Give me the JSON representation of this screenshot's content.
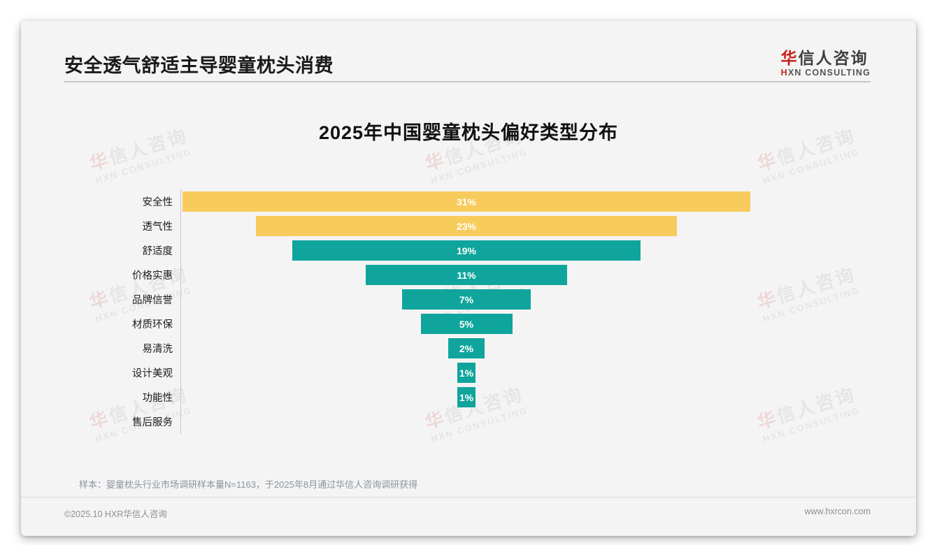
{
  "header": {
    "title": "安全透气舒适主导婴童枕头消费",
    "logo": {
      "zh_accent": "华",
      "zh_rest": "信人咨询",
      "en_accent": "H",
      "en_rest": "XN CONSULTING"
    }
  },
  "chart_data": {
    "type": "bar",
    "subtype": "horizontal-centered-funnel",
    "title": "2025年中国婴童枕头偏好类型分布",
    "categories": [
      "安全性",
      "透气性",
      "舒适度",
      "价格实惠",
      "品牌信誉",
      "材质环保",
      "易清洗",
      "设计美观",
      "功能性",
      "售后服务"
    ],
    "values": [
      31,
      23,
      19,
      11,
      7,
      5,
      2,
      1,
      1,
      0
    ],
    "value_labels": [
      "31%",
      "23%",
      "19%",
      "11%",
      "7%",
      "5%",
      "2%",
      "1%",
      "1%",
      ""
    ],
    "unit": "%",
    "xlim": [
      0,
      31
    ],
    "bar_colors": [
      "#F8CB5D",
      "#F8CB5D",
      "#0FA59C",
      "#0FA59C",
      "#0FA59C",
      "#0FA59C",
      "#0FA59C",
      "#0FA59C",
      "#0FA59C",
      "#0FA59C"
    ],
    "value_label_color": "#ffffff",
    "axis_line": true,
    "grid": false,
    "legend": false
  },
  "watermark": {
    "line1_accent": "华",
    "line1_rest": "信人咨询",
    "line2": "HXN CONSULTING"
  },
  "footnote": "样本：婴童枕头行业市场调研样本量N=1163，于2025年8月通过华信人咨询调研获得",
  "footer": {
    "copyright": "©2025.10 HXR华信人咨询",
    "website": "www.hxrcon.com"
  },
  "colors": {
    "accent_red": "#C5211B",
    "bar_yellow": "#F8CB5D",
    "bar_teal": "#0FA59C",
    "card_bg": "#F4F4F5",
    "text_dark": "#1A1A1A",
    "text_gray": "#8C959D"
  }
}
